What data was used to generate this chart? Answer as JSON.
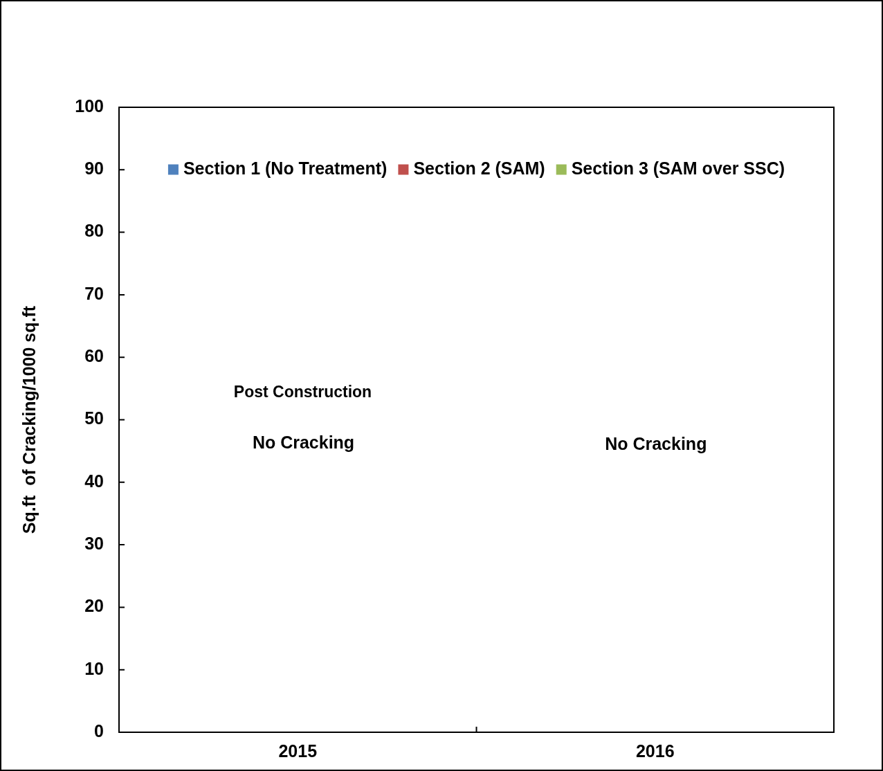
{
  "chart_data": {
    "type": "bar",
    "categories": [
      "2015",
      "2016"
    ],
    "series": [
      {
        "name": "Section 1 (No Treatment)",
        "color": "#4f81bd",
        "values": [
          0,
          0
        ]
      },
      {
        "name": "Section 2 (SAM)",
        "color": "#c0504d",
        "values": [
          0,
          0
        ]
      },
      {
        "name": "Section 3 (SAM over SSC)",
        "color": "#9bbb59",
        "values": [
          0,
          0
        ]
      }
    ],
    "ylabel": "Sq.ft  of Cracking/1000 sq.ft",
    "ylim": [
      0,
      100
    ],
    "yticks": [
      0,
      10,
      20,
      30,
      40,
      50,
      60,
      70,
      80,
      90,
      100
    ],
    "grid": false,
    "legend": "top",
    "annotations": [
      "Post Construction",
      "No Cracking",
      "No Cracking"
    ]
  }
}
